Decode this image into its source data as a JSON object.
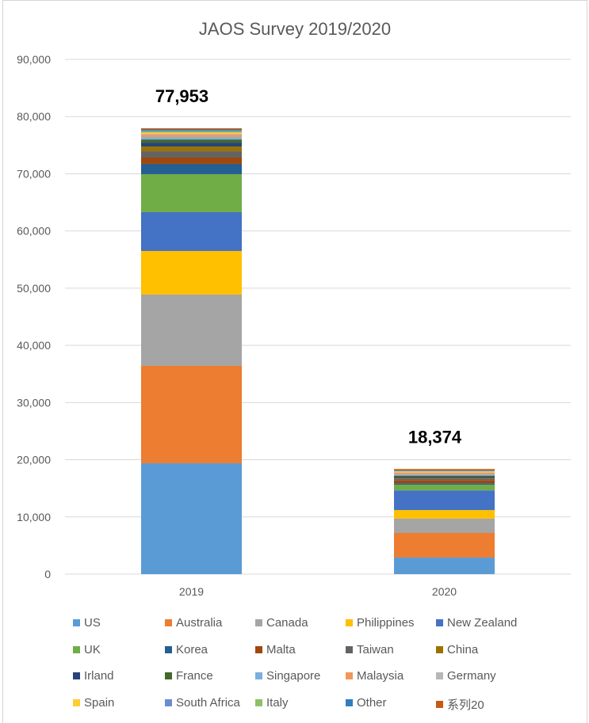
{
  "chart_data": {
    "type": "bar",
    "stacked": true,
    "title": "JAOS Survey 2019/2020",
    "xlabel": "",
    "ylabel": "",
    "categories": [
      "2019",
      "2020"
    ],
    "ylim": [
      0,
      90000
    ],
    "yticks": [
      0,
      10000,
      20000,
      30000,
      40000,
      50000,
      60000,
      70000,
      80000,
      90000
    ],
    "ytick_labels": [
      "0",
      "10,000",
      "20,000",
      "30,000",
      "40,000",
      "50,000",
      "60,000",
      "70,000",
      "80,000",
      "90,000"
    ],
    "grid": true,
    "legend_position": "bottom",
    "total_labels": [
      "77,953",
      "18,374"
    ],
    "series": [
      {
        "name": "US",
        "color": "#5B9BD5",
        "values": [
          19390,
          2900
        ]
      },
      {
        "name": "Australia",
        "color": "#ED7D31",
        "values": [
          17030,
          4300
        ]
      },
      {
        "name": "Canada",
        "color": "#A5A5A5",
        "values": [
          12460,
          2500
        ]
      },
      {
        "name": "Philippines",
        "color": "#FFC000",
        "values": [
          7620,
          1500
        ]
      },
      {
        "name": "New Zealand",
        "color": "#4472C4",
        "values": [
          6780,
          3450
        ]
      },
      {
        "name": "UK",
        "color": "#70AD47",
        "values": [
          6650,
          1000
        ]
      },
      {
        "name": "Korea",
        "color": "#255E91",
        "values": [
          1800,
          250
        ]
      },
      {
        "name": "Malta",
        "color": "#9E480E",
        "values": [
          1100,
          550
        ]
      },
      {
        "name": "Taiwan",
        "color": "#636363",
        "values": [
          1100,
          250
        ]
      },
      {
        "name": "China",
        "color": "#997300",
        "values": [
          830,
          120
        ]
      },
      {
        "name": "Irland",
        "color": "#264478",
        "values": [
          690,
          200
        ]
      },
      {
        "name": "France",
        "color": "#43682B",
        "values": [
          550,
          200
        ]
      },
      {
        "name": "Singapore",
        "color": "#7CAFDD",
        "values": [
          420,
          200
        ]
      },
      {
        "name": "Malaysia",
        "color": "#F1975A",
        "values": [
          420,
          300
        ]
      },
      {
        "name": "Germany",
        "color": "#B7B7B7",
        "values": [
          140,
          100
        ]
      },
      {
        "name": "Spain",
        "color": "#FFCD33",
        "values": [
          280,
          100
        ]
      },
      {
        "name": "South Africa",
        "color": "#698ED0",
        "values": [
          140,
          40
        ]
      },
      {
        "name": "Italy",
        "color": "#8CC168",
        "values": [
          140,
          60
        ]
      },
      {
        "name": "Other",
        "color": "#327DC2",
        "values": [
          200,
          100
        ]
      },
      {
        "name": "系列20",
        "color": "#C55A11",
        "values": [
          213,
          254
        ]
      }
    ]
  }
}
